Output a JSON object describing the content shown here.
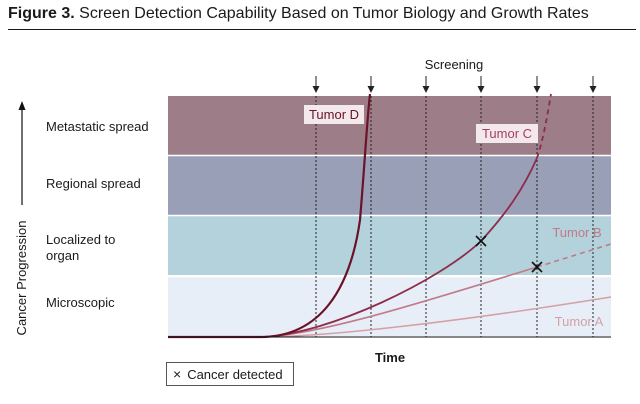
{
  "figure": {
    "label": "Figure 3.",
    "title": "Screen Detection Capability Based on Tumor Biology and Growth Rates"
  },
  "axes": {
    "y_label": "Cancer Progression",
    "x_label": "Time",
    "screening_label": "Screening"
  },
  "stages": [
    {
      "label": "Metastatic spread",
      "color": "#9c7d88"
    },
    {
      "label": "Regional spread",
      "color": "#9a9fb8"
    },
    {
      "label": "Localized to organ",
      "color": "#b3d2dc"
    },
    {
      "label": "Microscopic",
      "color": "#e8eef7"
    }
  ],
  "tumors": [
    {
      "label": "Tumor D",
      "color": "#6a1228"
    },
    {
      "label": "Tumor C",
      "color": "#a3405d"
    },
    {
      "label": "Tumor B",
      "color": "#c07a88"
    },
    {
      "label": "Tumor A",
      "color": "#d4a0a6"
    }
  ],
  "screening_count": 6,
  "legend": {
    "symbol": "×",
    "text": "Cancer detected"
  }
}
